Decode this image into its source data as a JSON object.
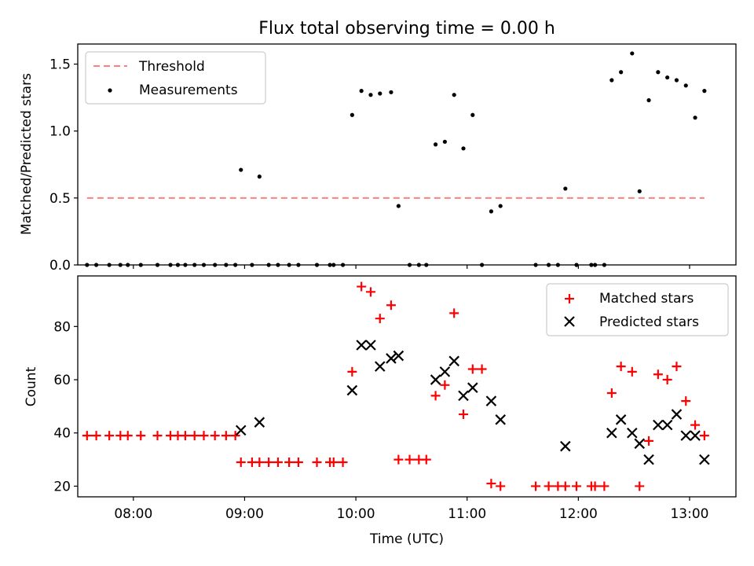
{
  "chart_data": [
    {
      "type": "scatter",
      "title": "Flux total observing time = 0.00 h",
      "ylabel": "Matched/Predicted stars",
      "xlabel": "",
      "xlim": [
        "07:30",
        "13:25"
      ],
      "ylim": [
        0,
        1.65
      ],
      "yticks": [
        0.0,
        0.5,
        1.0,
        1.5
      ],
      "ytick_labels": [
        "0.0",
        "0.5",
        "1.0",
        "1.5"
      ],
      "legend_position": "upper-left",
      "series": [
        {
          "name": "Threshold",
          "style": "dashed-line",
          "color": "#ff7f7f",
          "points": [
            [
              "07:35",
              0.5
            ],
            [
              "13:08",
              0.5
            ]
          ]
        },
        {
          "name": "Measurements",
          "style": "dot",
          "color": "#000000",
          "points": [
            [
              "07:35",
              0
            ],
            [
              "07:40",
              0
            ],
            [
              "07:47",
              0
            ],
            [
              "07:53",
              0
            ],
            [
              "07:57",
              0
            ],
            [
              "08:04",
              0
            ],
            [
              "08:13",
              0
            ],
            [
              "08:20",
              0
            ],
            [
              "08:24",
              0
            ],
            [
              "08:28",
              0
            ],
            [
              "08:33",
              0
            ],
            [
              "08:38",
              0
            ],
            [
              "08:44",
              0
            ],
            [
              "08:50",
              0
            ],
            [
              "08:55",
              0
            ],
            [
              "08:58",
              0.71
            ],
            [
              "09:04",
              0
            ],
            [
              "09:08",
              0.66
            ],
            [
              "09:13",
              0
            ],
            [
              "09:18",
              0
            ],
            [
              "09:24",
              0
            ],
            [
              "09:29",
              0
            ],
            [
              "09:39",
              0
            ],
            [
              "09:46",
              0
            ],
            [
              "09:48",
              0
            ],
            [
              "09:53",
              0
            ],
            [
              "09:58",
              1.12
            ],
            [
              "10:03",
              1.3
            ],
            [
              "10:08",
              1.27
            ],
            [
              "10:13",
              1.28
            ],
            [
              "10:19",
              1.29
            ],
            [
              "10:23",
              0.44
            ],
            [
              "10:29",
              0
            ],
            [
              "10:34",
              0
            ],
            [
              "10:38",
              0
            ],
            [
              "10:43",
              0.9
            ],
            [
              "10:48",
              0.92
            ],
            [
              "10:53",
              1.27
            ],
            [
              "10:58",
              0.87
            ],
            [
              "11:03",
              1.12
            ],
            [
              "11:08",
              0
            ],
            [
              "11:13",
              0.4
            ],
            [
              "11:18",
              0.44
            ],
            [
              "11:37",
              0
            ],
            [
              "11:44",
              0
            ],
            [
              "11:49",
              0
            ],
            [
              "11:53",
              0.57
            ],
            [
              "11:59",
              0
            ],
            [
              "12:07",
              0
            ],
            [
              "12:09",
              0
            ],
            [
              "12:14",
              0
            ],
            [
              "12:18",
              1.38
            ],
            [
              "12:23",
              1.44
            ],
            [
              "12:29",
              1.58
            ],
            [
              "12:33",
              0.55
            ],
            [
              "12:38",
              1.23
            ],
            [
              "12:43",
              1.44
            ],
            [
              "12:48",
              1.4
            ],
            [
              "12:53",
              1.38
            ],
            [
              "12:58",
              1.34
            ],
            [
              "13:03",
              1.1
            ],
            [
              "13:08",
              1.3
            ]
          ]
        }
      ]
    },
    {
      "type": "scatter",
      "title": "",
      "ylabel": "Count",
      "xlabel": "Time (UTC)",
      "xlim": [
        "07:30",
        "13:25"
      ],
      "ylim": [
        16,
        99
      ],
      "yticks": [
        20,
        40,
        60,
        80
      ],
      "ytick_labels": [
        "20",
        "40",
        "60",
        "80"
      ],
      "xtick_labels": [
        "08:00",
        "09:00",
        "10:00",
        "11:00",
        "12:00",
        "13:00"
      ],
      "legend_position": "upper-right",
      "series": [
        {
          "name": "Matched stars",
          "marker": "plus",
          "color": "#ff0000",
          "points": [
            [
              "07:35",
              39
            ],
            [
              "07:40",
              39
            ],
            [
              "07:47",
              39
            ],
            [
              "07:53",
              39
            ],
            [
              "07:57",
              39
            ],
            [
              "08:04",
              39
            ],
            [
              "08:13",
              39
            ],
            [
              "08:20",
              39
            ],
            [
              "08:24",
              39
            ],
            [
              "08:28",
              39
            ],
            [
              "08:33",
              39
            ],
            [
              "08:38",
              39
            ],
            [
              "08:44",
              39
            ],
            [
              "08:50",
              39
            ],
            [
              "08:55",
              39
            ],
            [
              "08:58",
              29
            ],
            [
              "09:04",
              29
            ],
            [
              "09:08",
              29
            ],
            [
              "09:13",
              29
            ],
            [
              "09:18",
              29
            ],
            [
              "09:24",
              29
            ],
            [
              "09:29",
              29
            ],
            [
              "09:39",
              29
            ],
            [
              "09:46",
              29
            ],
            [
              "09:48",
              29
            ],
            [
              "09:53",
              29
            ],
            [
              "09:58",
              63
            ],
            [
              "10:03",
              95
            ],
            [
              "10:08",
              93
            ],
            [
              "10:13",
              83
            ],
            [
              "10:19",
              88
            ],
            [
              "10:23",
              30
            ],
            [
              "10:29",
              30
            ],
            [
              "10:34",
              30
            ],
            [
              "10:38",
              30
            ],
            [
              "10:43",
              54
            ],
            [
              "10:48",
              58
            ],
            [
              "10:53",
              85
            ],
            [
              "10:58",
              47
            ],
            [
              "11:03",
              64
            ],
            [
              "11:08",
              64
            ],
            [
              "11:13",
              21
            ],
            [
              "11:18",
              20
            ],
            [
              "11:37",
              20
            ],
            [
              "11:44",
              20
            ],
            [
              "11:49",
              20
            ],
            [
              "11:53",
              20
            ],
            [
              "11:59",
              20
            ],
            [
              "12:07",
              20
            ],
            [
              "12:09",
              20
            ],
            [
              "12:14",
              20
            ],
            [
              "12:18",
              55
            ],
            [
              "12:23",
              65
            ],
            [
              "12:29",
              63
            ],
            [
              "12:33",
              20
            ],
            [
              "12:38",
              37
            ],
            [
              "12:43",
              62
            ],
            [
              "12:48",
              60
            ],
            [
              "12:53",
              65
            ],
            [
              "12:58",
              52
            ],
            [
              "13:03",
              43
            ],
            [
              "13:08",
              39
            ]
          ]
        },
        {
          "name": "Predicted stars",
          "marker": "x",
          "color": "#000000",
          "points": [
            [
              "08:58",
              41
            ],
            [
              "09:08",
              44
            ],
            [
              "09:58",
              56
            ],
            [
              "10:03",
              73
            ],
            [
              "10:08",
              73
            ],
            [
              "10:13",
              65
            ],
            [
              "10:19",
              68
            ],
            [
              "10:23",
              69
            ],
            [
              "10:43",
              60
            ],
            [
              "10:48",
              63
            ],
            [
              "10:53",
              67
            ],
            [
              "10:58",
              54
            ],
            [
              "11:03",
              57
            ],
            [
              "11:13",
              52
            ],
            [
              "11:18",
              45
            ],
            [
              "11:53",
              35
            ],
            [
              "12:18",
              40
            ],
            [
              "12:23",
              45
            ],
            [
              "12:29",
              40
            ],
            [
              "12:33",
              36
            ],
            [
              "12:38",
              30
            ],
            [
              "12:43",
              43
            ],
            [
              "12:48",
              43
            ],
            [
              "12:53",
              47
            ],
            [
              "12:58",
              39
            ],
            [
              "13:03",
              39
            ],
            [
              "13:08",
              30
            ]
          ]
        }
      ]
    }
  ]
}
